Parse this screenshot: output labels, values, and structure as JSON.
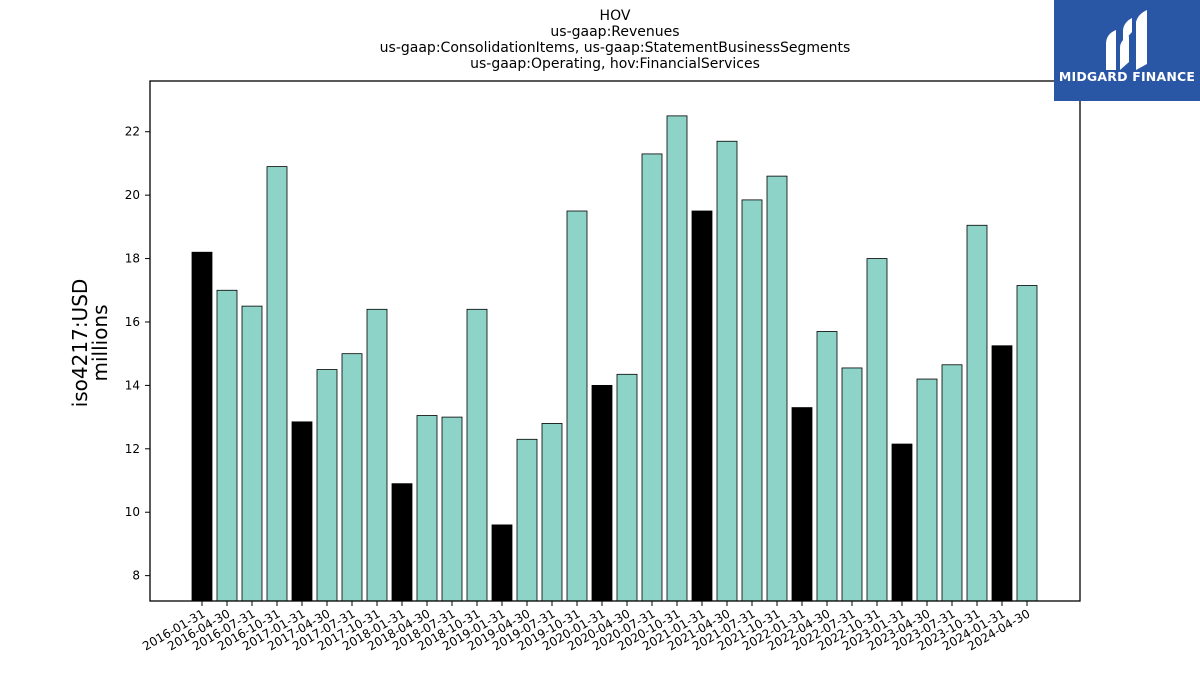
{
  "brand": {
    "name": "MIDGARD FINANCE",
    "bg_color": "#2a57a5",
    "icon": "midgard-logo-mark"
  },
  "chart_data": {
    "type": "bar",
    "title": [
      "HOV",
      "us-gaap:Revenues",
      "us-gaap:ConsolidationItems, us-gaap:StatementBusinessSegments",
      "us-gaap:Operating, hov:FinancialServices"
    ],
    "ylabel": [
      "iso4217:USD",
      "millions"
    ],
    "xlabel": "",
    "ylim": [
      7.2,
      23.6
    ],
    "yticks": [
      8,
      10,
      12,
      14,
      16,
      18,
      20,
      22
    ],
    "colors": {
      "quarter": "#8dd3c7",
      "fiscal_q1": "#000000",
      "edge": "#000000"
    },
    "categories": [
      "2016-01-31",
      "2016-04-30",
      "2016-07-31",
      "2016-10-31",
      "2017-01-31",
      "2017-04-30",
      "2017-07-31",
      "2017-10-31",
      "2018-01-31",
      "2018-04-30",
      "2018-07-31",
      "2018-10-31",
      "2019-01-31",
      "2019-04-30",
      "2019-07-31",
      "2019-10-31",
      "2020-01-31",
      "2020-04-30",
      "2020-07-31",
      "2020-10-31",
      "2021-01-31",
      "2021-04-30",
      "2021-07-31",
      "2021-10-31",
      "2022-01-31",
      "2022-04-30",
      "2022-07-31",
      "2022-10-31",
      "2023-01-31",
      "2023-04-30",
      "2023-07-31",
      "2023-10-31",
      "2024-01-31",
      "2024-04-30"
    ],
    "values": [
      18.2,
      17.0,
      16.5,
      20.9,
      12.85,
      14.5,
      15.0,
      16.4,
      10.9,
      13.05,
      13.0,
      16.4,
      9.6,
      12.3,
      12.8,
      19.5,
      14.0,
      14.35,
      21.3,
      22.5,
      19.5,
      21.7,
      19.85,
      20.6,
      13.3,
      15.7,
      14.55,
      18.0,
      12.15,
      14.2,
      14.65,
      19.05,
      15.25,
      17.15
    ],
    "highlight": [
      true,
      false,
      false,
      false,
      true,
      false,
      false,
      false,
      true,
      false,
      false,
      false,
      true,
      false,
      false,
      false,
      true,
      false,
      false,
      false,
      true,
      false,
      false,
      false,
      true,
      false,
      false,
      false,
      true,
      false,
      false,
      false,
      true,
      false
    ]
  }
}
